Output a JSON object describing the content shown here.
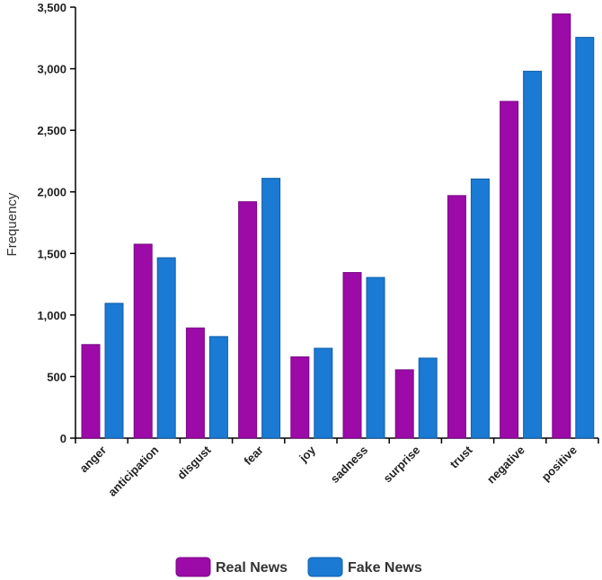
{
  "chart_data": {
    "type": "bar",
    "categories": [
      "anger",
      "anticipation",
      "disgust",
      "fear",
      "joy",
      "sadness",
      "surprise",
      "trust",
      "negative",
      "positive"
    ],
    "series": [
      {
        "name": "Real News",
        "color": "#9c0aa8",
        "values": [
          760,
          1575,
          895,
          1920,
          660,
          1345,
          555,
          1970,
          2735,
          3445
        ]
      },
      {
        "name": "Fake News",
        "color": "#1a7ad4",
        "values": [
          1095,
          1465,
          825,
          2110,
          730,
          1305,
          650,
          2105,
          2980,
          3255
        ]
      }
    ],
    "ylabel": "Frequency",
    "ylim": [
      0,
      3500
    ],
    "yticks": [
      0,
      500,
      1000,
      1500,
      2000,
      2500,
      3000,
      3500
    ],
    "ytick_labels": [
      "0",
      "500",
      "1,000",
      "1,500",
      "2,000",
      "2,500",
      "3,000",
      "3,500"
    ],
    "grid": false,
    "legend_position": "bottom-center"
  }
}
